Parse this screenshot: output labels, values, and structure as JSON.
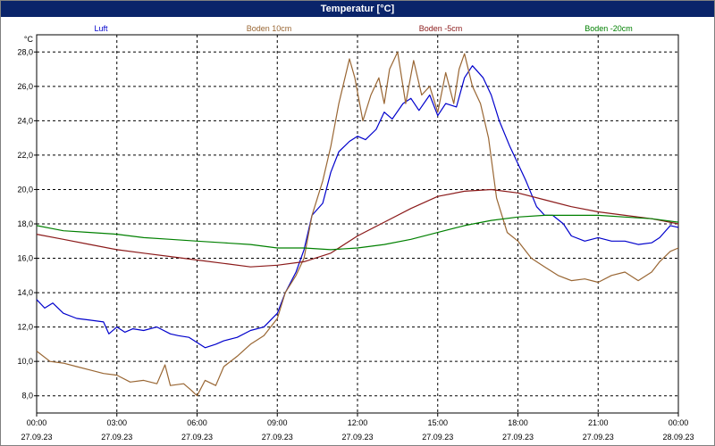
{
  "title": "Temperatur [°C]",
  "colors": {
    "title_bg": "#0a246a",
    "title_fg": "#ffffff",
    "grid": "#000000",
    "axis_text": "#000000"
  },
  "chart_data": {
    "type": "line",
    "ylabel": "°C",
    "ylim": [
      7,
      29
    ],
    "xlim": [
      0,
      24
    ],
    "grid": true,
    "legend_position": "top",
    "y_ticks": [
      8,
      10,
      12,
      14,
      16,
      18,
      20,
      22,
      24,
      26,
      28
    ],
    "y_tick_labels": [
      "8,0",
      "10,0",
      "12,0",
      "14,0",
      "16,0",
      "18,0",
      "20,0",
      "22,0",
      "24,0",
      "26,0",
      "28,0"
    ],
    "x_ticks": [
      0,
      3,
      6,
      9,
      12,
      15,
      18,
      21,
      24
    ],
    "x_tick_labels": [
      {
        "time": "00:00",
        "date": "27.09.23"
      },
      {
        "time": "03:00",
        "date": "27.09.23"
      },
      {
        "time": "06:00",
        "date": "27.09.23"
      },
      {
        "time": "09:00",
        "date": "27.09.23"
      },
      {
        "time": "12:00",
        "date": "27.09.23"
      },
      {
        "time": "15:00",
        "date": "27.09.23"
      },
      {
        "time": "18:00",
        "date": "27.09.23"
      },
      {
        "time": "21:00",
        "date": "27.09.23"
      },
      {
        "time": "00:00",
        "date": "28.09.23"
      }
    ],
    "series": [
      {
        "name": "Luft",
        "color": "#0000cc",
        "x": [
          0,
          0.3,
          0.6,
          1,
          1.5,
          2,
          2.5,
          2.7,
          3,
          3.3,
          3.6,
          4,
          4.5,
          5,
          5.3,
          5.7,
          6,
          6.3,
          6.7,
          7,
          7.5,
          8,
          8.5,
          9,
          9.3,
          9.7,
          10,
          10.3,
          10.7,
          11,
          11.3,
          11.7,
          12,
          12.3,
          12.7,
          13,
          13.3,
          13.7,
          14,
          14.3,
          14.7,
          15,
          15.3,
          15.7,
          16,
          16.3,
          16.7,
          17,
          17.3,
          17.7,
          18,
          18.3,
          18.7,
          19,
          19.3,
          19.7,
          20,
          20.5,
          21,
          21.5,
          22,
          22.5,
          23,
          23.3,
          23.7,
          24
        ],
        "values": [
          13.6,
          13.1,
          13.4,
          12.8,
          12.5,
          12.4,
          12.3,
          11.6,
          12.0,
          11.7,
          11.9,
          11.8,
          12.0,
          11.6,
          11.5,
          11.4,
          11.1,
          10.8,
          11.0,
          11.2,
          11.4,
          11.8,
          12.0,
          12.8,
          14.0,
          15.2,
          16.5,
          18.5,
          19.2,
          21.0,
          22.2,
          22.8,
          23.1,
          22.9,
          23.5,
          24.5,
          24.1,
          25.0,
          25.3,
          24.6,
          25.5,
          24.3,
          25.0,
          24.8,
          26.5,
          27.2,
          26.5,
          25.5,
          24.0,
          22.5,
          21.5,
          20.5,
          19.0,
          18.5,
          18.5,
          18.0,
          17.3,
          17.0,
          17.2,
          17.0,
          17.0,
          16.8,
          16.9,
          17.2,
          17.9,
          17.8
        ]
      },
      {
        "name": "Boden 10cm",
        "color": "#996633",
        "x": [
          0,
          0.5,
          1,
          1.5,
          2,
          2.5,
          3,
          3.5,
          4,
          4.5,
          4.8,
          5,
          5.5,
          5.8,
          6,
          6.3,
          6.7,
          7,
          7.5,
          8,
          8.5,
          9,
          9.3,
          9.7,
          10,
          10.3,
          10.7,
          11,
          11.3,
          11.7,
          11.9,
          12.2,
          12.5,
          12.8,
          13,
          13.2,
          13.5,
          13.8,
          14.1,
          14.4,
          14.7,
          15,
          15.3,
          15.6,
          15.8,
          16,
          16.3,
          16.6,
          16.9,
          17.2,
          17.6,
          18,
          18.5,
          19,
          19.5,
          20,
          20.5,
          21,
          21.5,
          22,
          22.5,
          23,
          23.3,
          23.7,
          24
        ],
        "values": [
          10.6,
          10.0,
          9.9,
          9.7,
          9.5,
          9.3,
          9.2,
          8.8,
          8.9,
          8.7,
          9.8,
          8.6,
          8.7,
          8.3,
          8.0,
          8.9,
          8.6,
          9.7,
          10.3,
          11.0,
          11.5,
          12.5,
          14.0,
          15.0,
          16.0,
          18.5,
          20.5,
          22.5,
          25.0,
          27.6,
          26.5,
          24.0,
          25.5,
          26.5,
          25.0,
          27.0,
          28.0,
          25.0,
          27.5,
          25.5,
          26.0,
          24.5,
          26.8,
          25.0,
          27.0,
          27.9,
          26.0,
          25.0,
          23.0,
          19.5,
          17.5,
          17.0,
          16.0,
          15.5,
          15.0,
          14.7,
          14.8,
          14.6,
          15.0,
          15.2,
          14.7,
          15.2,
          15.8,
          16.4,
          16.6
        ]
      },
      {
        "name": "Boden -5cm",
        "color": "#8b1a1a",
        "x": [
          0,
          1,
          2,
          3,
          4,
          5,
          6,
          7,
          8,
          9,
          10,
          11,
          12,
          13,
          14,
          15,
          16,
          17,
          18,
          19,
          20,
          21,
          22,
          23,
          24
        ],
        "values": [
          17.4,
          17.1,
          16.8,
          16.5,
          16.3,
          16.1,
          15.9,
          15.7,
          15.5,
          15.6,
          15.8,
          16.3,
          17.3,
          18.1,
          18.9,
          19.6,
          19.9,
          20.0,
          19.8,
          19.4,
          19.0,
          18.7,
          18.5,
          18.3,
          18.0
        ]
      },
      {
        "name": "Boden -20cm",
        "color": "#008000",
        "x": [
          0,
          1,
          2,
          3,
          4,
          5,
          6,
          7,
          8,
          9,
          10,
          11,
          12,
          13,
          14,
          15,
          16,
          17,
          18,
          19,
          20,
          21,
          22,
          23,
          24
        ],
        "values": [
          17.9,
          17.6,
          17.5,
          17.4,
          17.2,
          17.1,
          17.0,
          16.9,
          16.8,
          16.6,
          16.6,
          16.5,
          16.6,
          16.8,
          17.1,
          17.5,
          17.9,
          18.2,
          18.4,
          18.5,
          18.5,
          18.5,
          18.4,
          18.3,
          18.1
        ]
      }
    ]
  }
}
